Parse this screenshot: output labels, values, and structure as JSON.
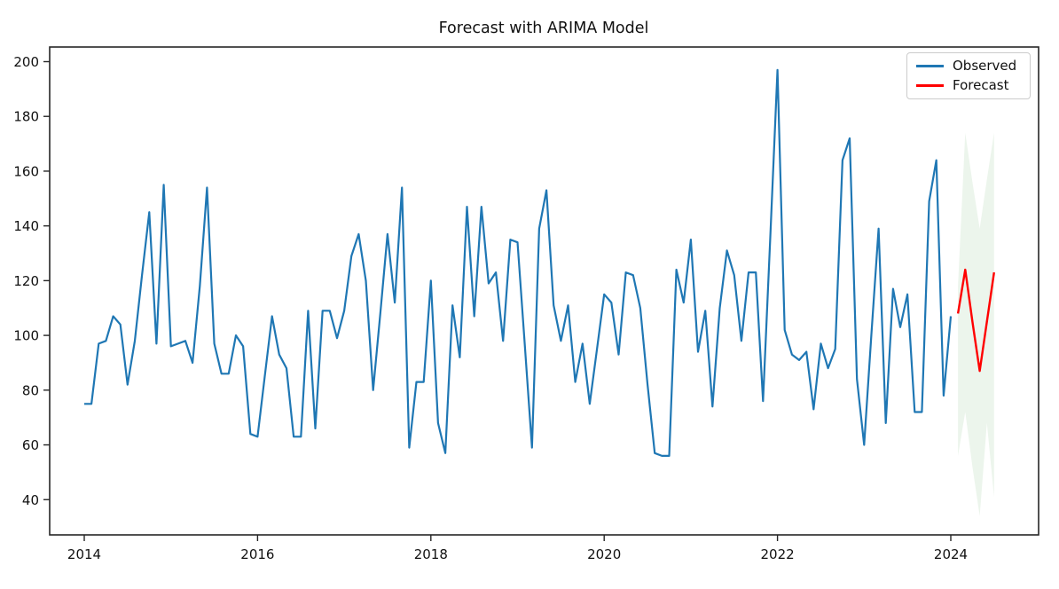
{
  "figure": {
    "title": "Forecast with ARIMA Model"
  },
  "legend": {
    "items": [
      {
        "label": "Observed",
        "color": "#1f77b4"
      },
      {
        "label": "Forecast",
        "color": "#ff0000"
      }
    ]
  },
  "chart_data": {
    "type": "line",
    "title": "Forecast with ARIMA Model",
    "xlabel": "",
    "ylabel": "",
    "x_ticks": [
      2014,
      2016,
      2018,
      2020,
      2022,
      2024
    ],
    "y_ticks": [
      40,
      60,
      80,
      100,
      120,
      140,
      160,
      180,
      200
    ],
    "xlim": [
      2013.67,
      2025.01
    ],
    "ylim": [
      27,
      205
    ],
    "grid": false,
    "legend_position": "upper right",
    "frame_color": "#262626",
    "series": [
      {
        "name": "Observed",
        "color": "#1f77b4",
        "x_start": 2014.0,
        "x_step_months": 1,
        "values": [
          75,
          75,
          97,
          98,
          107,
          104,
          82,
          98,
          122,
          145,
          97,
          155,
          96,
          97,
          98,
          90,
          118,
          154,
          97,
          86,
          86,
          100,
          96,
          64,
          63,
          85,
          107,
          93,
          88,
          63,
          63,
          109,
          66,
          109,
          109,
          99,
          109,
          129,
          137,
          120,
          80,
          108,
          137,
          112,
          154,
          59,
          83,
          83,
          120,
          68,
          57,
          111,
          92,
          147,
          107,
          147,
          119,
          123,
          98,
          135,
          134,
          97,
          59,
          139,
          153,
          111,
          98,
          111,
          83,
          97,
          75,
          95,
          115,
          112,
          93,
          123,
          122,
          110,
          82,
          57,
          56,
          56,
          124,
          112,
          135,
          94,
          109,
          74,
          110,
          131,
          122,
          98,
          123,
          123,
          76,
          136,
          197,
          102,
          93,
          91,
          94,
          73,
          97,
          88,
          95,
          164,
          172,
          84,
          60,
          100,
          139,
          68,
          117,
          103,
          115,
          72,
          72,
          149,
          164,
          78,
          107
        ]
      },
      {
        "name": "Forecast",
        "color": "#ff0000",
        "x_start": 2024.0833,
        "x_step_months": 1,
        "values": [
          108,
          124,
          105,
          87,
          105,
          123
        ]
      }
    ],
    "confidence_interval": {
      "name": "forecast-95pct-interval",
      "color": "#2e8b2e",
      "opacity": 0.09,
      "x_start": 2024.0833,
      "x_step_months": 1,
      "upper": [
        118,
        174,
        156,
        139,
        157,
        174
      ],
      "lower": [
        56,
        72,
        52,
        34,
        68,
        41
      ]
    }
  }
}
